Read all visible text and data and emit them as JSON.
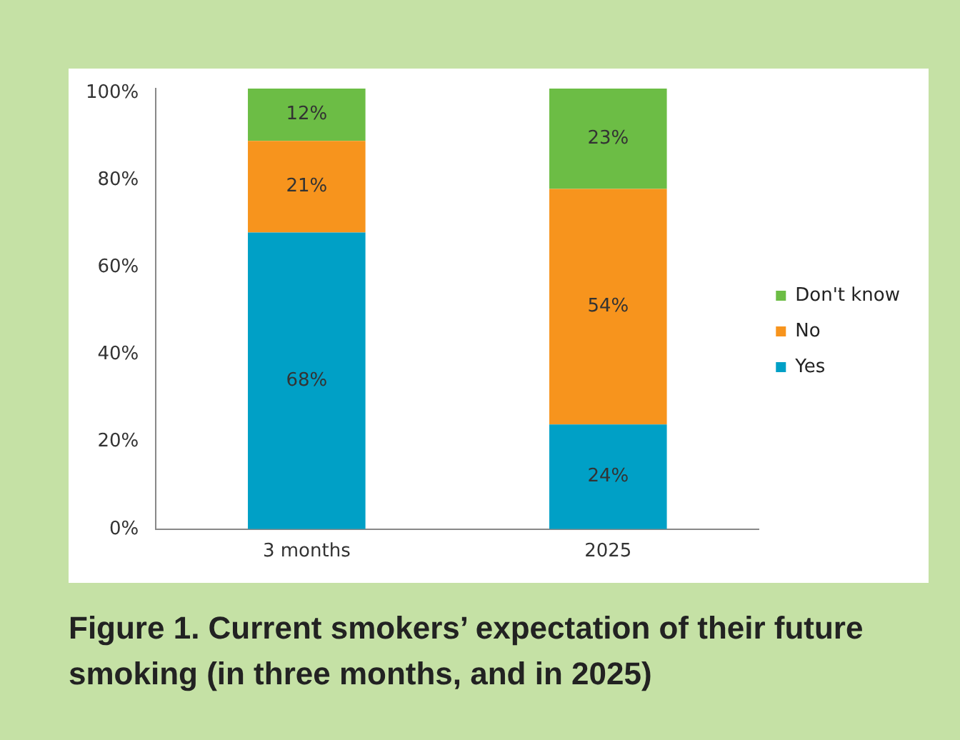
{
  "chart_data": {
    "type": "bar",
    "title": "Figure 1. Current smokers’ expectation of their future smoking (in three months, and in 2025)",
    "categories": [
      "3 months",
      "2025"
    ],
    "stacked": true,
    "series": [
      {
        "name": "Yes",
        "color": "#00a0c6",
        "values": [
          68,
          24
        ],
        "value_labels": [
          "68%",
          "24%"
        ]
      },
      {
        "name": "No",
        "color": "#f7941d",
        "values": [
          21,
          54
        ],
        "value_labels": [
          "21%",
          "54%"
        ]
      },
      {
        "name": "Don't know",
        "color": "#6cbd45",
        "values": [
          12,
          23
        ],
        "value_labels": [
          "12%",
          "23%"
        ]
      }
    ],
    "ylim": [
      0,
      101
    ],
    "yticks": [
      {
        "value": 0,
        "label": "0%"
      },
      {
        "value": 20,
        "label": "20%"
      },
      {
        "value": 40,
        "label": "40%"
      },
      {
        "value": 60,
        "label": "60%"
      },
      {
        "value": 80,
        "label": "80%"
      },
      {
        "value": 100,
        "label": "100%"
      }
    ],
    "grid": false,
    "legend": "right"
  }
}
